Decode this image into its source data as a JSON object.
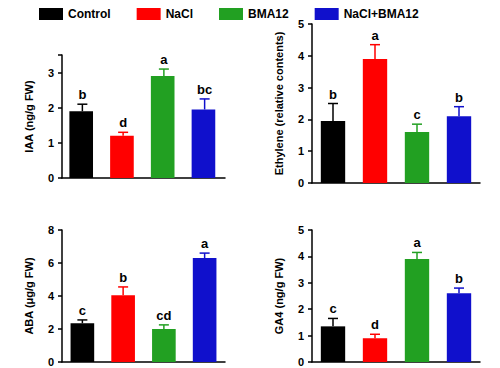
{
  "chart_data": [
    {
      "type": "bar",
      "y_label": "IAA (ng/g FW)",
      "categories": [
        "Control",
        "NaCl",
        "BMA12",
        "NaCl+BMA12"
      ],
      "colors": [
        "#000000",
        "#ff0000",
        "#22a022",
        "#1010cc"
      ],
      "values": [
        1.9,
        1.2,
        2.9,
        1.95
      ],
      "errors": [
        0.2,
        0.1,
        0.2,
        0.3
      ],
      "annotations": [
        "b",
        "d",
        "a",
        "bc"
      ],
      "ylim": [
        0,
        3.5
      ],
      "yticks": [
        0,
        1,
        2,
        3
      ],
      "tick_labels": "y",
      "grid": false,
      "legend": "top"
    },
    {
      "type": "bar",
      "y_label": "Ethylene (relative contents)",
      "categories": [
        "Control",
        "NaCl",
        "BMA12",
        "NaCl+BMA12"
      ],
      "colors": [
        "#000000",
        "#ff0000",
        "#22a022",
        "#1010cc"
      ],
      "values": [
        1.95,
        3.9,
        1.6,
        2.1
      ],
      "errors": [
        0.55,
        0.45,
        0.25,
        0.3
      ],
      "annotations": [
        "b",
        "a",
        "c",
        "b"
      ],
      "ylim": [
        0,
        5
      ],
      "yticks": [
        0,
        1,
        2,
        3,
        4,
        5
      ],
      "tick_labels": "y",
      "grid": false
    },
    {
      "type": "bar",
      "y_label": "ABA (μg/g FW)",
      "categories": [
        "Control",
        "NaCl",
        "BMA12",
        "NaCl+BMA12"
      ],
      "colors": [
        "#000000",
        "#ff0000",
        "#22a022",
        "#1010cc"
      ],
      "values": [
        2.35,
        4.05,
        2.0,
        6.3
      ],
      "errors": [
        0.2,
        0.5,
        0.25,
        0.3
      ],
      "annotations": [
        "c",
        "b",
        "cd",
        "a"
      ],
      "ylim": [
        0,
        8
      ],
      "yticks": [
        0,
        2,
        4,
        6,
        8
      ],
      "tick_labels": "y",
      "grid": false
    },
    {
      "type": "bar",
      "y_label": "GA4 (ng/g FW)",
      "categories": [
        "Control",
        "NaCl",
        "BMA12",
        "NaCl+BMA12"
      ],
      "colors": [
        "#000000",
        "#ff0000",
        "#22a022",
        "#1010cc"
      ],
      "values": [
        1.35,
        0.9,
        3.9,
        2.6
      ],
      "errors": [
        0.3,
        0.15,
        0.25,
        0.2
      ],
      "annotations": [
        "c",
        "d",
        "a",
        "b"
      ],
      "ylim": [
        0,
        5
      ],
      "yticks": [
        0,
        1,
        2,
        3,
        4,
        5
      ],
      "tick_labels": "y",
      "grid": false
    }
  ]
}
